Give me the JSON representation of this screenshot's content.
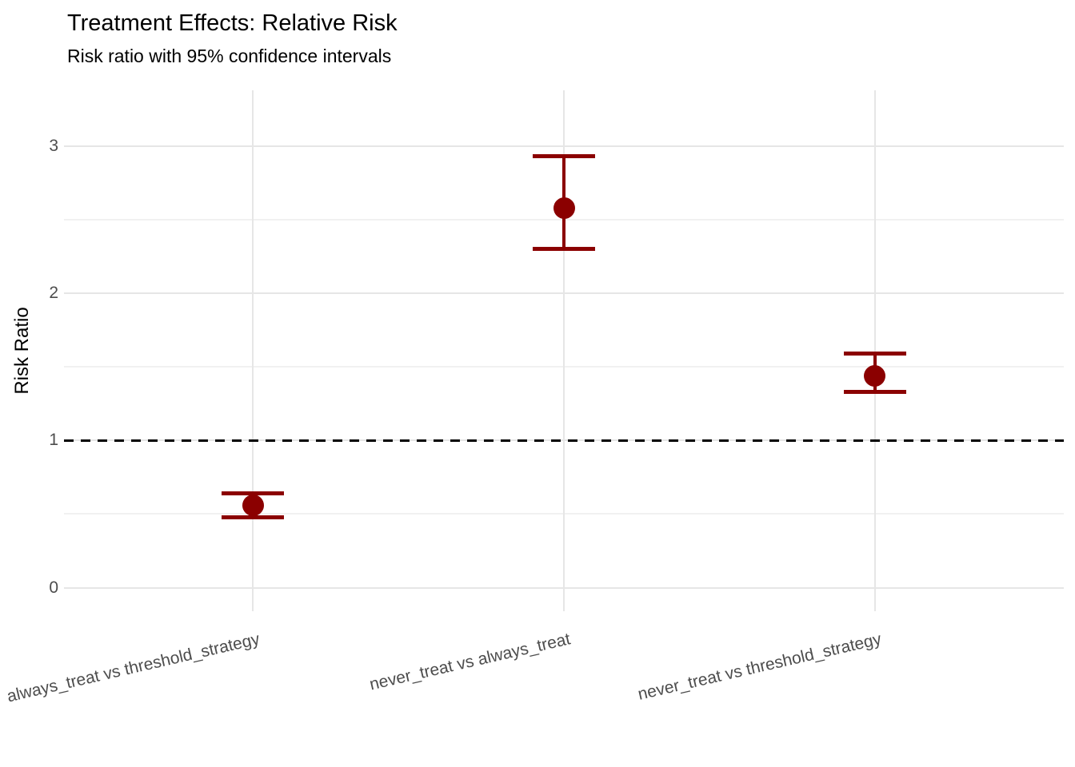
{
  "header": {
    "title": "Treatment Effects: Relative Risk",
    "subtitle": "Risk ratio with 95% confidence intervals"
  },
  "chart_data": {
    "type": "scatter",
    "variant": "point-range-errorbar",
    "title": "Treatment Effects: Relative Risk",
    "subtitle": "Risk ratio with 95% confidence intervals",
    "xlabel": "",
    "ylabel": "Risk Ratio",
    "categories": [
      "always_treat vs threshold_strategy",
      "never_treat vs always_treat",
      "never_treat vs threshold_strategy"
    ],
    "series": [
      {
        "name": "Risk ratio (95% CI)",
        "color": "#8B0000",
        "points": [
          {
            "category": "always_treat vs threshold_strategy",
            "estimate": 0.56,
            "ci_low": 0.48,
            "ci_high": 0.64
          },
          {
            "category": "never_treat vs always_treat",
            "estimate": 2.58,
            "ci_low": 2.3,
            "ci_high": 2.93
          },
          {
            "category": "never_treat vs threshold_strategy",
            "estimate": 1.44,
            "ci_low": 1.33,
            "ci_high": 1.59
          }
        ]
      }
    ],
    "yticks": [
      0,
      1,
      2,
      3
    ],
    "yminor": [
      0.5,
      1.5,
      2.5
    ],
    "ylim": [
      -0.16,
      3.38
    ],
    "reference_line": {
      "y": 1,
      "style": "dashed",
      "color": "#000000"
    },
    "grid": true,
    "legend": "none",
    "x_tick_angle_deg": -13,
    "colors": {
      "point": "#8B0000",
      "grid_major": "#E6E6E6",
      "grid_minor": "#F1F1F1",
      "tick_text": "#4D4D4D",
      "text": "#000000",
      "background": "#FFFFFF"
    }
  }
}
